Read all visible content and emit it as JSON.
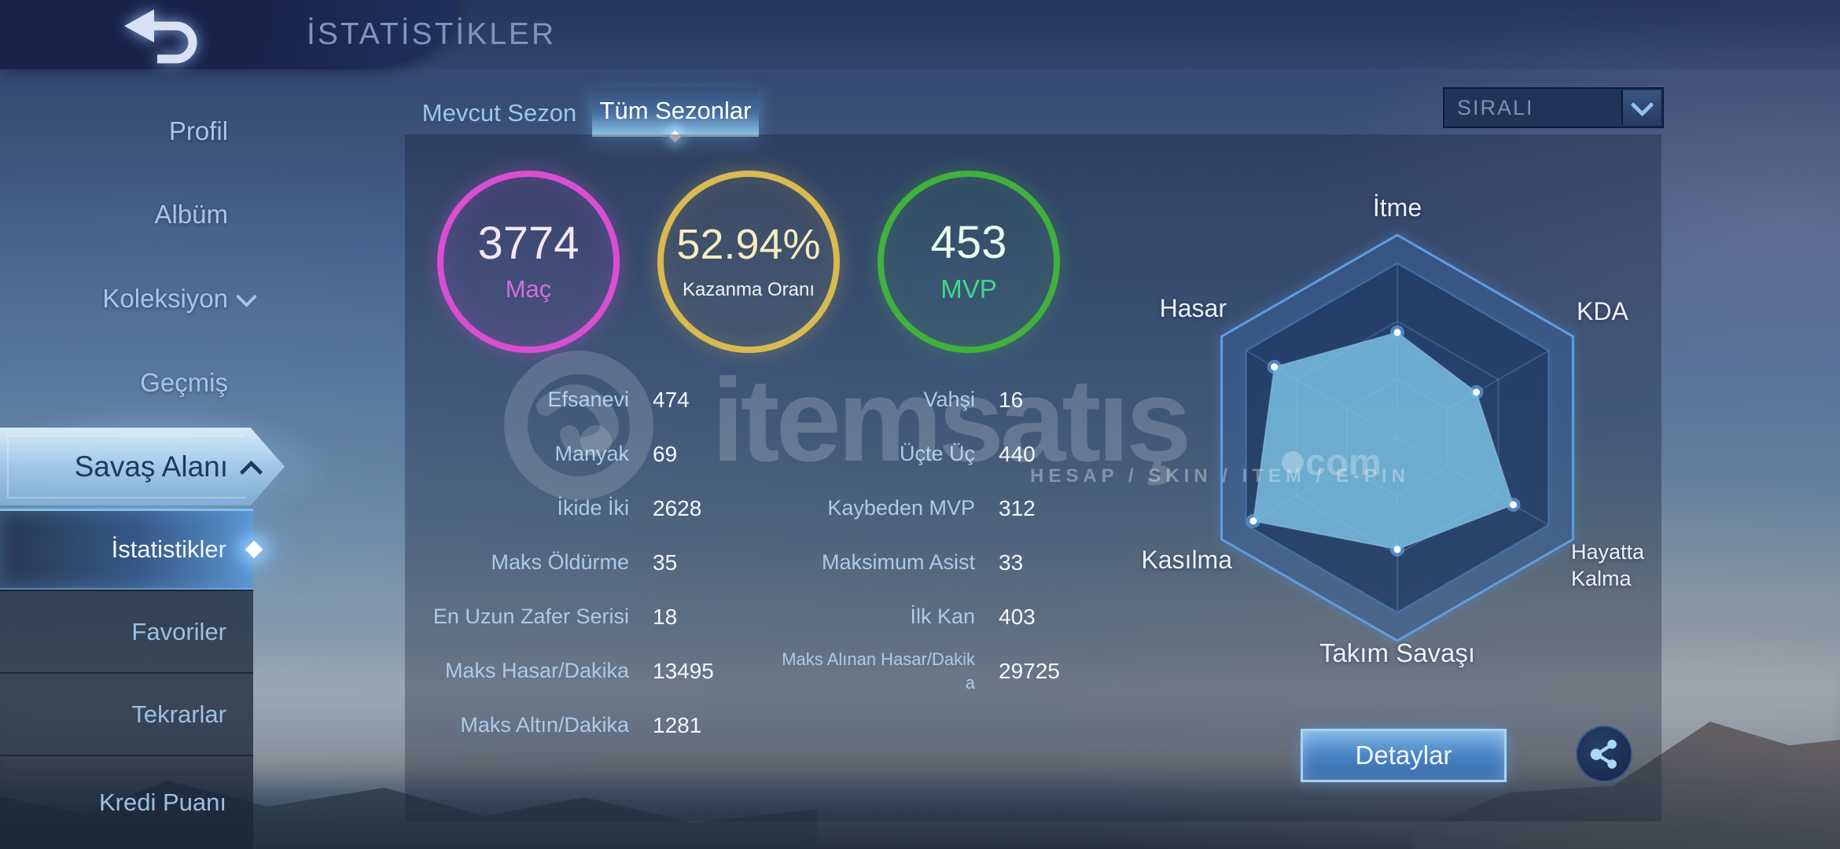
{
  "header": {
    "title": "İSTATİSTİKLER"
  },
  "sidebar": {
    "items": [
      {
        "label": "Profil"
      },
      {
        "label": "Albüm"
      },
      {
        "label": "Koleksiyon",
        "chevron": "down"
      },
      {
        "label": "Geçmiş"
      },
      {
        "label": "Savaş Alanı",
        "chevron": "up",
        "selected": true
      }
    ],
    "subitems": [
      {
        "label": "İstatistikler",
        "selected": true
      },
      {
        "label": "Favoriler"
      },
      {
        "label": "Tekrarlar"
      },
      {
        "label": "Kredi Puanı"
      }
    ]
  },
  "tabs": [
    {
      "label": "Mevcut Sezon",
      "active": false
    },
    {
      "label": "Tüm Sezonlar",
      "active": true
    }
  ],
  "sort_dropdown": {
    "value": "SIRALI"
  },
  "summary_circles": [
    {
      "value": "3774",
      "label": "Maç",
      "ring_color": "#d94fd2"
    },
    {
      "value": "52.94%",
      "label": "Kazanma Oranı",
      "ring_color": "#d9ba52"
    },
    {
      "value": "453",
      "label": "MVP",
      "ring_color": "#41b03c"
    }
  ],
  "stats_left": [
    {
      "label": "Efsanevi",
      "value": "474"
    },
    {
      "label": "Manyak",
      "value": "69"
    },
    {
      "label": "İkide İki",
      "value": "2628"
    },
    {
      "label": "Maks Öldürme",
      "value": "35"
    },
    {
      "label": "En Uzun Zafer Serisi",
      "value": "18"
    },
    {
      "label": "Maks Hasar/Dakika",
      "value": "13495"
    },
    {
      "label": "Maks Altın/Dakika",
      "value": "1281"
    }
  ],
  "stats_right": [
    {
      "label": "Vahşi",
      "value": "16"
    },
    {
      "label": "Üçte Üç",
      "value": "440"
    },
    {
      "label": "Kaybeden MVP",
      "value": "312"
    },
    {
      "label": "Maksimum Asist",
      "value": "33"
    },
    {
      "label": "İlk Kan",
      "value": "403"
    },
    {
      "label": "Maks Alınan Hasar/Dakika",
      "value": "29725"
    }
  ],
  "chart_data": {
    "type": "radar",
    "title": "Hero performance radar",
    "axes": [
      "İtme",
      "KDA",
      "Hayatta Kalma",
      "Takım Savaşı",
      "Kasılma",
      "Hasar"
    ],
    "values_normalized": [
      0.52,
      0.45,
      0.66,
      0.55,
      0.82,
      0.7
    ],
    "max": 1,
    "grid_levels": [
      0.2875,
      0.575,
      0.86,
      1.0
    ],
    "fill_color": "rgba(128,199,233,0.80)",
    "grid_color": "rgba(120,168,226,0.30)",
    "outline_color": "#5e9de2",
    "legend_position": "none"
  },
  "footer": {
    "details_label": "Detaylar"
  },
  "watermark": {
    "brand": "itemsatış",
    "tagline": "HESAP / SKIN / ITEM / E-PIN",
    "domain_suffix": "com"
  }
}
